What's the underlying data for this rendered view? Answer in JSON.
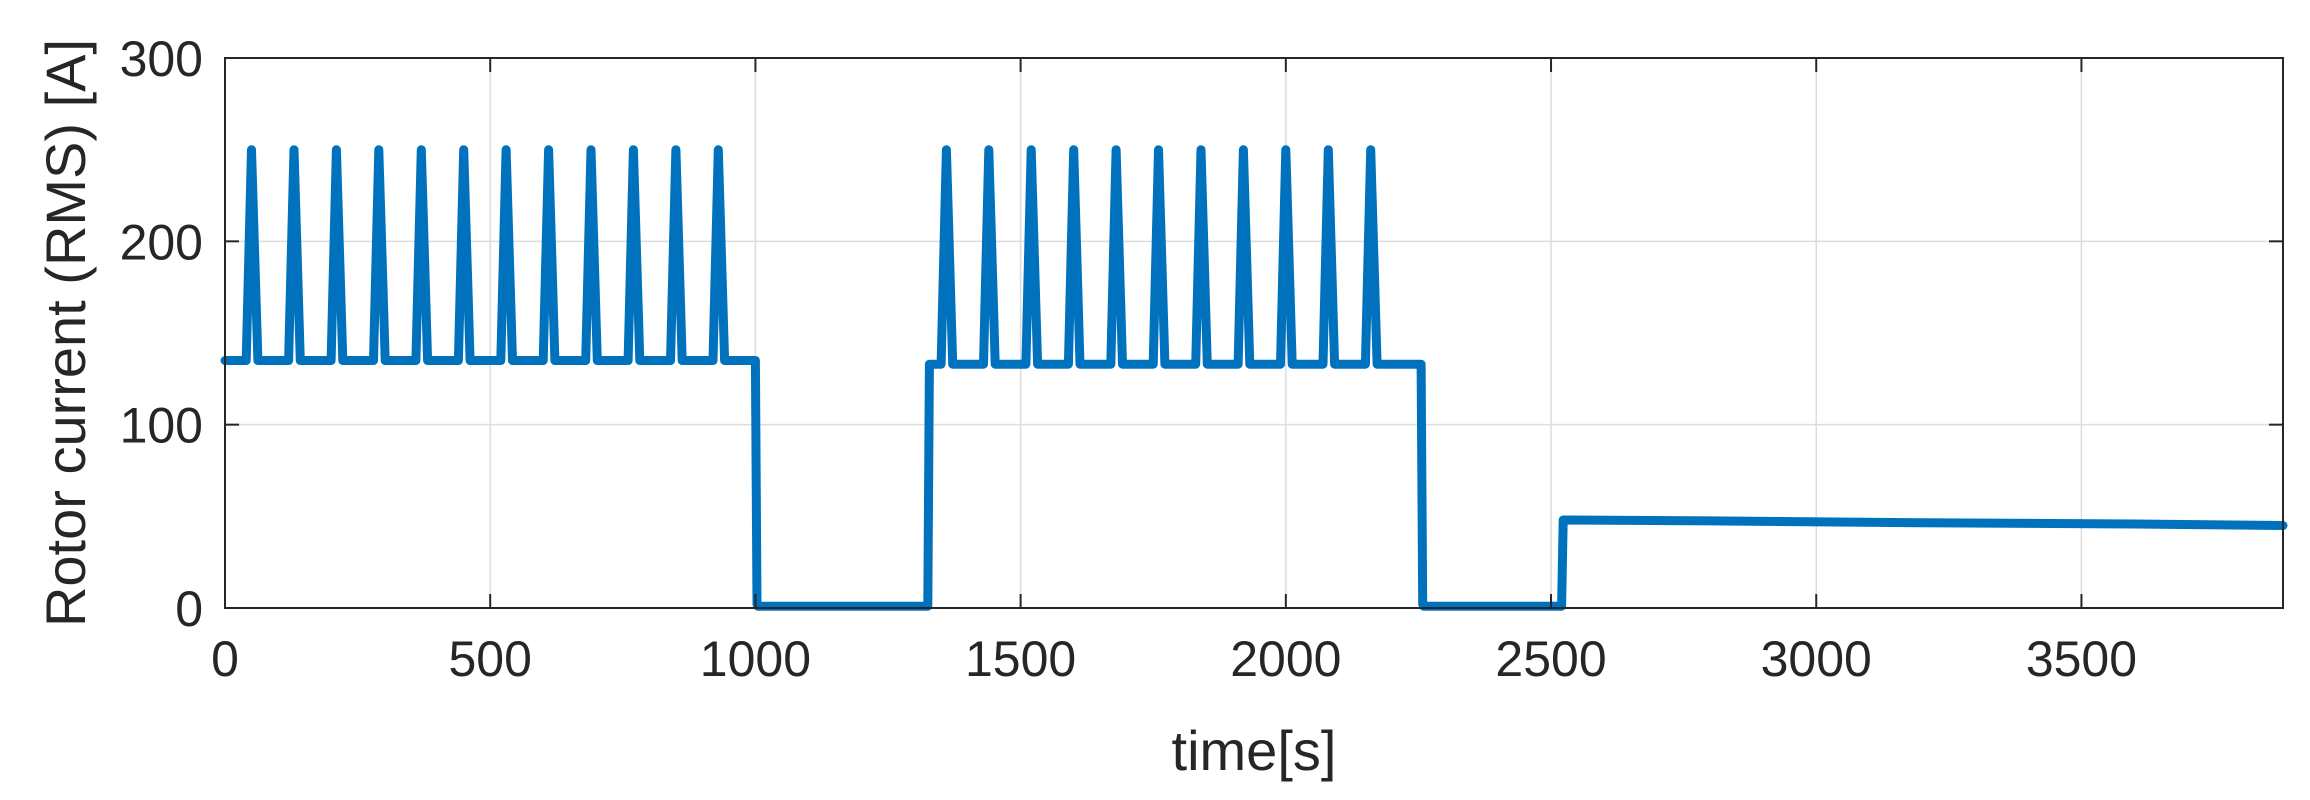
{
  "chart_data": {
    "type": "line",
    "title": "",
    "xlabel": "time[s]",
    "ylabel": "Rotor current (RMS) [A]",
    "xlim": [
      0,
      3880
    ],
    "ylim": [
      0,
      300
    ],
    "xticks": [
      0,
      500,
      1000,
      1500,
      2000,
      2500,
      3000,
      3500
    ],
    "yticks": [
      0,
      100,
      200,
      300
    ],
    "grid": true,
    "colors": {
      "series": "#0072BD",
      "axis": "#262626",
      "grid": "#DCDCDC"
    },
    "series": [
      {
        "x": [
          0,
          40,
          50,
          62,
          120,
          130,
          142,
          200,
          210,
          222,
          280,
          290,
          302,
          360,
          370,
          382,
          440,
          450,
          462,
          520,
          530,
          542,
          600,
          610,
          622,
          680,
          690,
          702,
          760,
          770,
          782,
          840,
          850,
          862,
          920,
          930,
          942,
          1000,
          1003,
          1005,
          1325,
          1328,
          1330,
          1350,
          1360,
          1372,
          1430,
          1440,
          1452,
          1510,
          1520,
          1532,
          1590,
          1600,
          1612,
          1670,
          1680,
          1692,
          1750,
          1760,
          1772,
          1830,
          1840,
          1852,
          1910,
          1920,
          1932,
          1990,
          2000,
          2012,
          2070,
          2080,
          2092,
          2150,
          2160,
          2172,
          2255,
          2258,
          2260,
          2520,
          2523,
          2530,
          2800,
          3200,
          3600,
          3880
        ],
        "y": [
          135,
          135,
          250,
          135,
          135,
          250,
          135,
          135,
          250,
          135,
          135,
          250,
          135,
          135,
          250,
          135,
          135,
          250,
          135,
          135,
          250,
          135,
          135,
          250,
          135,
          135,
          250,
          135,
          135,
          250,
          135,
          135,
          250,
          135,
          135,
          250,
          135,
          135,
          2,
          1,
          1,
          133,
          133,
          133,
          250,
          133,
          133,
          250,
          133,
          133,
          250,
          133,
          133,
          250,
          133,
          133,
          250,
          133,
          133,
          250,
          133,
          133,
          250,
          133,
          133,
          250,
          133,
          133,
          250,
          133,
          133,
          250,
          133,
          133,
          250,
          133,
          133,
          2,
          1,
          1,
          48,
          48,
          47.5,
          46.5,
          45.8,
          45
        ]
      }
    ]
  }
}
